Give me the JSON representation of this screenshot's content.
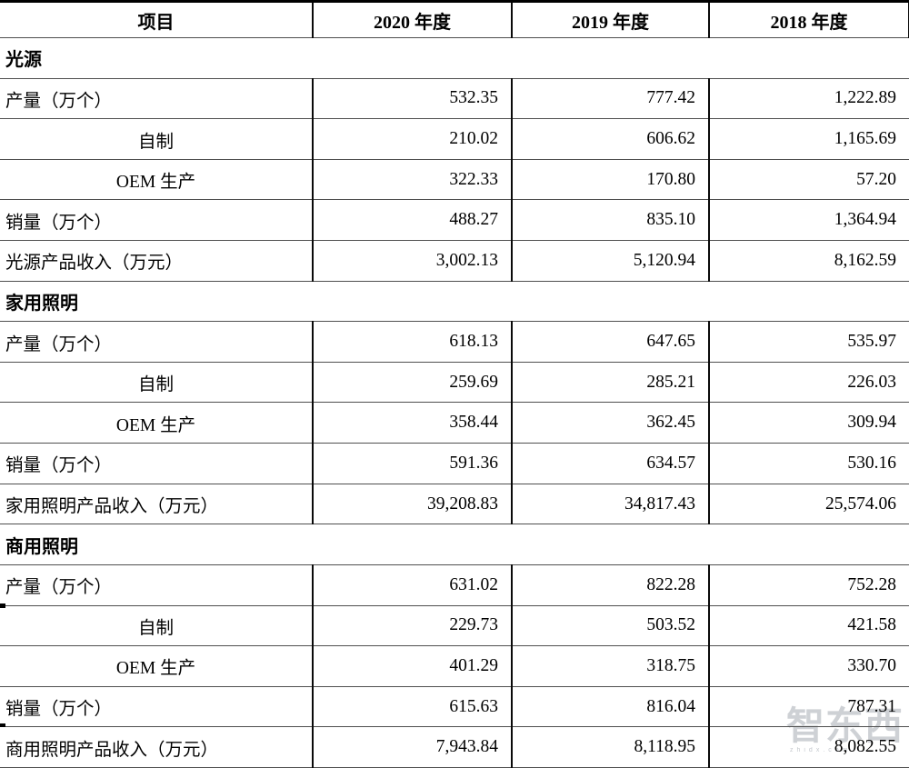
{
  "table": {
    "columns": [
      "项目",
      "2020 年度",
      "2019 年度",
      "2018 年度"
    ],
    "sections": [
      {
        "name": "光源",
        "rows": [
          {
            "label": "产量（万个）",
            "align": "left",
            "values": [
              "532.35",
              "777.42",
              "1,222.89"
            ]
          },
          {
            "label": "自制",
            "align": "center",
            "values": [
              "210.02",
              "606.62",
              "1,165.69"
            ]
          },
          {
            "label": "OEM 生产",
            "align": "center",
            "values": [
              "322.33",
              "170.80",
              "57.20"
            ]
          },
          {
            "label": "销量（万个）",
            "align": "left",
            "values": [
              "488.27",
              "835.10",
              "1,364.94"
            ]
          },
          {
            "label": "光源产品收入（万元）",
            "align": "left",
            "values": [
              "3,002.13",
              "5,120.94",
              "8,162.59"
            ]
          }
        ]
      },
      {
        "name": "家用照明",
        "rows": [
          {
            "label": "产量（万个）",
            "align": "left",
            "values": [
              "618.13",
              "647.65",
              "535.97"
            ]
          },
          {
            "label": "自制",
            "align": "center",
            "values": [
              "259.69",
              "285.21",
              "226.03"
            ]
          },
          {
            "label": "OEM 生产",
            "align": "center",
            "values": [
              "358.44",
              "362.45",
              "309.94"
            ]
          },
          {
            "label": "销量（万个）",
            "align": "left",
            "values": [
              "591.36",
              "634.57",
              "530.16"
            ]
          },
          {
            "label": "家用照明产品收入（万元）",
            "align": "left",
            "values": [
              "39,208.83",
              "34,817.43",
              "25,574.06"
            ]
          }
        ]
      },
      {
        "name": "商用照明",
        "rows": [
          {
            "label": "产量（万个）",
            "align": "left",
            "values": [
              "631.02",
              "822.28",
              "752.28"
            ]
          },
          {
            "label": "自制",
            "align": "center",
            "values": [
              "229.73",
              "503.52",
              "421.58"
            ]
          },
          {
            "label": "OEM 生产",
            "align": "center",
            "values": [
              "401.29",
              "318.75",
              "330.70"
            ]
          },
          {
            "label": "销量（万个）",
            "align": "left",
            "values": [
              "615.63",
              "816.04",
              "787.31"
            ]
          },
          {
            "label": "商用照明产品收入（万元）",
            "align": "left",
            "values": [
              "7,943.84",
              "8,118.95",
              "8,082.55"
            ]
          }
        ]
      }
    ]
  },
  "watermark": {
    "text": "智东西",
    "subtext": "zhidx.com"
  },
  "colors": {
    "border_heavy": "#000000",
    "border_light": "#4f4f4f",
    "watermark": "#a7adb4"
  }
}
